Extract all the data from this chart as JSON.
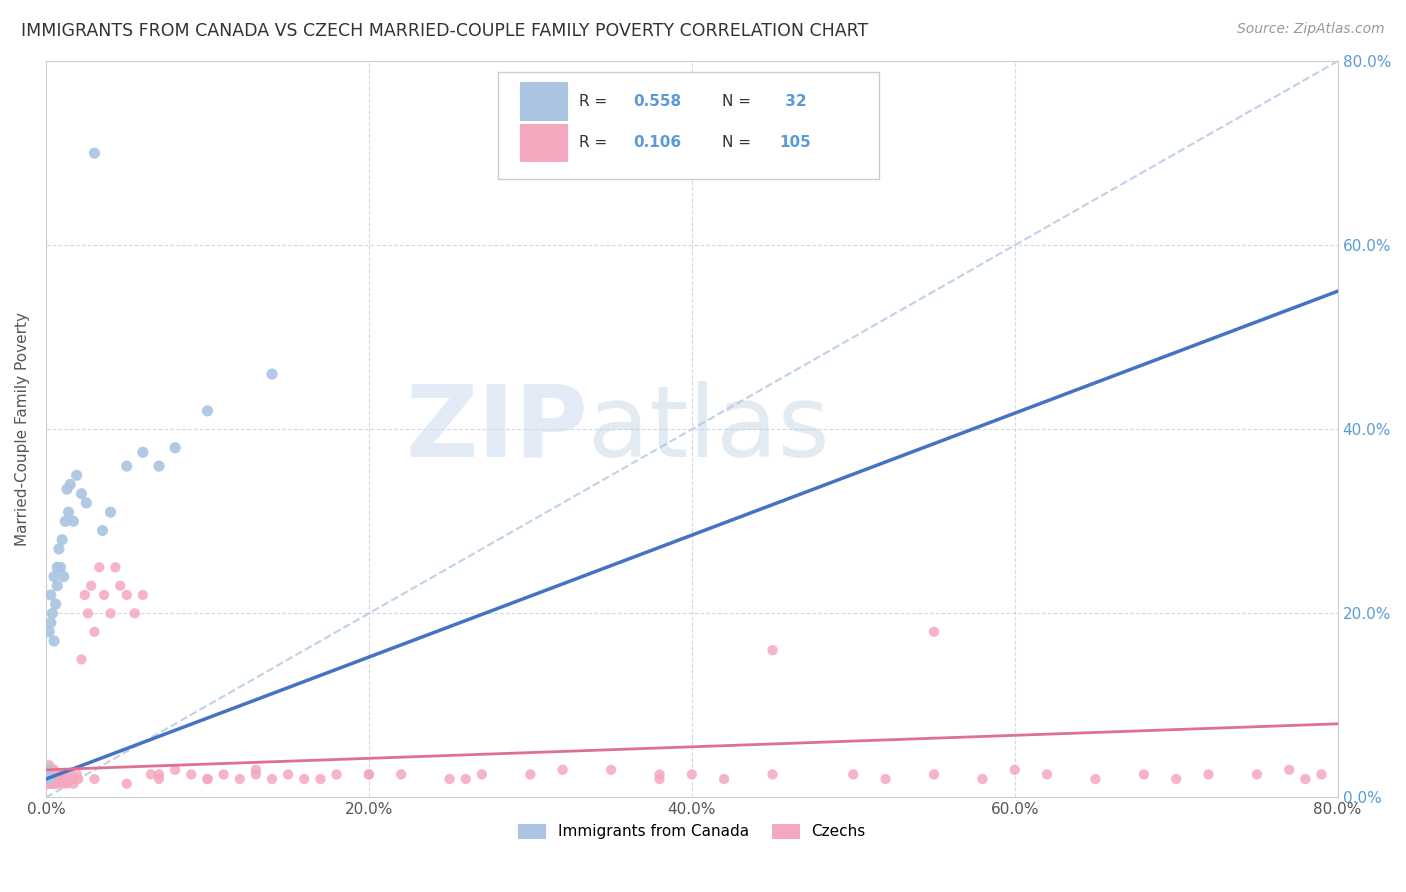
{
  "title": "IMMIGRANTS FROM CANADA VS CZECH MARRIED-COUPLE FAMILY POVERTY CORRELATION CHART",
  "source": "Source: ZipAtlas.com",
  "ylabel": "Married-Couple Family Poverty",
  "watermark_zip": "ZIP",
  "watermark_atlas": "atlas",
  "canada_R": 0.558,
  "canada_N": 32,
  "czech_R": 0.106,
  "czech_N": 105,
  "canada_color": "#aac4e2",
  "czech_color": "#f4a8be",
  "canada_line_color": "#4472c4",
  "czech_line_color": "#e07090",
  "diag_line_color": "#b8cce4",
  "xlim": [
    0.0,
    0.8
  ],
  "ylim": [
    0.0,
    0.8
  ],
  "canada_x": [
    0.001,
    0.002,
    0.002,
    0.003,
    0.003,
    0.004,
    0.005,
    0.005,
    0.006,
    0.007,
    0.007,
    0.008,
    0.009,
    0.01,
    0.011,
    0.012,
    0.013,
    0.014,
    0.015,
    0.017,
    0.019,
    0.022,
    0.025,
    0.03,
    0.035,
    0.04,
    0.05,
    0.06,
    0.07,
    0.08,
    0.1,
    0.14
  ],
  "canada_y": [
    0.03,
    0.02,
    0.18,
    0.19,
    0.22,
    0.2,
    0.17,
    0.24,
    0.21,
    0.25,
    0.23,
    0.27,
    0.25,
    0.28,
    0.24,
    0.3,
    0.335,
    0.31,
    0.34,
    0.3,
    0.35,
    0.33,
    0.32,
    0.7,
    0.29,
    0.31,
    0.36,
    0.375,
    0.36,
    0.38,
    0.42,
    0.46
  ],
  "czech_x": [
    0.001,
    0.001,
    0.001,
    0.001,
    0.002,
    0.002,
    0.002,
    0.002,
    0.002,
    0.003,
    0.003,
    0.003,
    0.003,
    0.004,
    0.004,
    0.004,
    0.005,
    0.005,
    0.005,
    0.005,
    0.006,
    0.006,
    0.006,
    0.007,
    0.007,
    0.007,
    0.008,
    0.008,
    0.009,
    0.009,
    0.01,
    0.01,
    0.01,
    0.011,
    0.011,
    0.012,
    0.013,
    0.014,
    0.015,
    0.016,
    0.017,
    0.018,
    0.019,
    0.02,
    0.022,
    0.024,
    0.026,
    0.028,
    0.03,
    0.033,
    0.036,
    0.04,
    0.043,
    0.046,
    0.05,
    0.055,
    0.06,
    0.065,
    0.07,
    0.08,
    0.09,
    0.1,
    0.11,
    0.12,
    0.13,
    0.14,
    0.15,
    0.17,
    0.18,
    0.2,
    0.22,
    0.25,
    0.27,
    0.3,
    0.35,
    0.38,
    0.4,
    0.42,
    0.45,
    0.5,
    0.52,
    0.55,
    0.58,
    0.6,
    0.62,
    0.65,
    0.68,
    0.7,
    0.72,
    0.75,
    0.77,
    0.78,
    0.79,
    0.55,
    0.45,
    0.38,
    0.32,
    0.26,
    0.2,
    0.16,
    0.13,
    0.1,
    0.07,
    0.05,
    0.03
  ],
  "czech_y": [
    0.02,
    0.03,
    0.015,
    0.025,
    0.02,
    0.03,
    0.015,
    0.025,
    0.035,
    0.02,
    0.03,
    0.015,
    0.025,
    0.02,
    0.03,
    0.015,
    0.02,
    0.025,
    0.03,
    0.015,
    0.02,
    0.025,
    0.015,
    0.02,
    0.025,
    0.015,
    0.02,
    0.025,
    0.02,
    0.025,
    0.02,
    0.025,
    0.015,
    0.02,
    0.025,
    0.02,
    0.015,
    0.02,
    0.025,
    0.02,
    0.015,
    0.02,
    0.025,
    0.02,
    0.15,
    0.22,
    0.2,
    0.23,
    0.18,
    0.25,
    0.22,
    0.2,
    0.25,
    0.23,
    0.22,
    0.2,
    0.22,
    0.025,
    0.02,
    0.03,
    0.025,
    0.02,
    0.025,
    0.02,
    0.03,
    0.02,
    0.025,
    0.02,
    0.025,
    0.025,
    0.025,
    0.02,
    0.025,
    0.025,
    0.03,
    0.02,
    0.025,
    0.02,
    0.025,
    0.025,
    0.02,
    0.025,
    0.02,
    0.03,
    0.025,
    0.02,
    0.025,
    0.02,
    0.025,
    0.025,
    0.03,
    0.02,
    0.025,
    0.18,
    0.16,
    0.025,
    0.03,
    0.02,
    0.025,
    0.02,
    0.025,
    0.02,
    0.025,
    0.015,
    0.02
  ],
  "canada_line_x0": 0.0,
  "canada_line_y0": 0.02,
  "canada_line_x1": 0.8,
  "canada_line_y1": 0.55,
  "czech_line_x0": 0.0,
  "czech_line_y0": 0.03,
  "czech_line_x1": 0.8,
  "czech_line_y1": 0.08,
  "legend_R1": "R = 0.558",
  "legend_N1": "N =  32",
  "legend_R2": "R = 0.106",
  "legend_N2": "N = 105",
  "legend_label1": "Immigrants from Canada",
  "legend_label2": "Czechs",
  "right_ytick_labels": [
    "0.0%",
    "20.0%",
    "40.0%",
    "60.0%",
    "80.0%"
  ],
  "right_ytick_colors": [
    "#5b9bd5",
    "#5b9bd5",
    "#5b9bd5",
    "#5b9bd5",
    "#5b9bd5"
  ],
  "xtick_labels": [
    "0.0%",
    "20.0%",
    "40.0%",
    "60.0%",
    "80.0%"
  ],
  "background": "#ffffff",
  "grid_color": "#d0d0d8",
  "title_color": "#333333",
  "source_color": "#999999"
}
